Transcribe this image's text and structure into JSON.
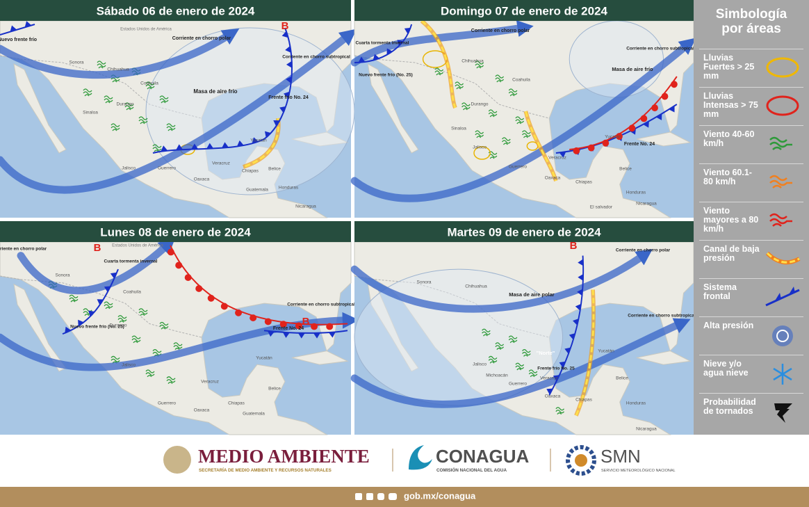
{
  "panels": [
    {
      "title": "Sábado 06 de enero de 2024",
      "labels": [
        "Estados Unidos de América",
        "Nuevo frente frío",
        "Corriente en chorro polar",
        "Corriente en chorro subtropical",
        "Masa de aire frío",
        "Frente frío No. 24",
        "Sonora",
        "Chihuahua",
        "Coahuila",
        "Durango",
        "Sinaloa",
        "Jalisco",
        "Guerrero",
        "Oaxaca",
        "Veracruz",
        "Chiapas",
        "Yucatán",
        "Belice",
        "Guatemala",
        "Honduras",
        "Nicaragua",
        "B"
      ]
    },
    {
      "title": "Domingo 07 de enero de 2024",
      "labels": [
        "Cuarta tormenta invernal",
        "Nuevo frente frío (No. 25)",
        "Corriente en chorro polar",
        "Corriente en chorro subtropical",
        "Masa de aire frío",
        "Frente No. 24",
        "Chihuahua",
        "Coahuila",
        "Durango",
        "Sinaloa",
        "Jalisco",
        "Guerrero",
        "Oaxaca",
        "Veracruz",
        "Chiapas",
        "Yucatán",
        "Belice",
        "Honduras",
        "El salvador",
        "Nicaragua",
        "B"
      ]
    },
    {
      "title": "Lunes 08 de enero de 2024",
      "labels": [
        "Corriente en chorro polar",
        "B",
        "Estados Unidos de América",
        "Cuarta tormenta invernal",
        "Nuevo frente frío (No. 25)",
        "Corriente en chorro subtropical",
        "Frente No. 24",
        "B",
        "Sonora",
        "Coahuila",
        "Durango",
        "Jalisco",
        "Guerrero",
        "Oaxaca",
        "Veracruz",
        "Chiapas",
        "Yucatán",
        "Belice",
        "Guatemala"
      ]
    },
    {
      "title": "Martes 09 de enero de 2024",
      "labels": [
        "B",
        "Corriente en chorro polar",
        "Sonora",
        "Chihuahua",
        "Masa de aire polar",
        "Corriente en chorro subtropical",
        "\"Norte\"",
        "Frente frío No. 25",
        "Jalisco",
        "Michoacán",
        "Guerrero",
        "Oaxaca",
        "Veracruz",
        "Chiapas",
        "Yucatán",
        "Belice",
        "Honduras",
        "Nicaragua"
      ]
    }
  ],
  "legend": {
    "title": "Simbología por áreas",
    "items": [
      "Lluvias Fuertes > 25 mm",
      "Lluvias Intensas > 75 mm",
      "Viento 40-60 km/h",
      "Viento 60.1-80 km/h",
      "Viento mayores a 80 km/h",
      "Canal de baja presión",
      "Sistema frontal",
      "Alta presión",
      "Nieve y/o agua nieve",
      "Probabilidad de tornados"
    ]
  },
  "footer": {
    "semarnat": "MEDIO AMBIENTE",
    "semarnat_sub": "SECRETARÍA DE MEDIO AMBIENTE Y RECURSOS NATURALES",
    "conagua": "CONAGUA",
    "conagua_sub": "COMISIÓN NACIONAL DEL AGUA",
    "smn": "SMN",
    "smn_sub": "SERVICIO METEOROLÓGICO NACIONAL",
    "url": "gob.mx/conagua"
  }
}
